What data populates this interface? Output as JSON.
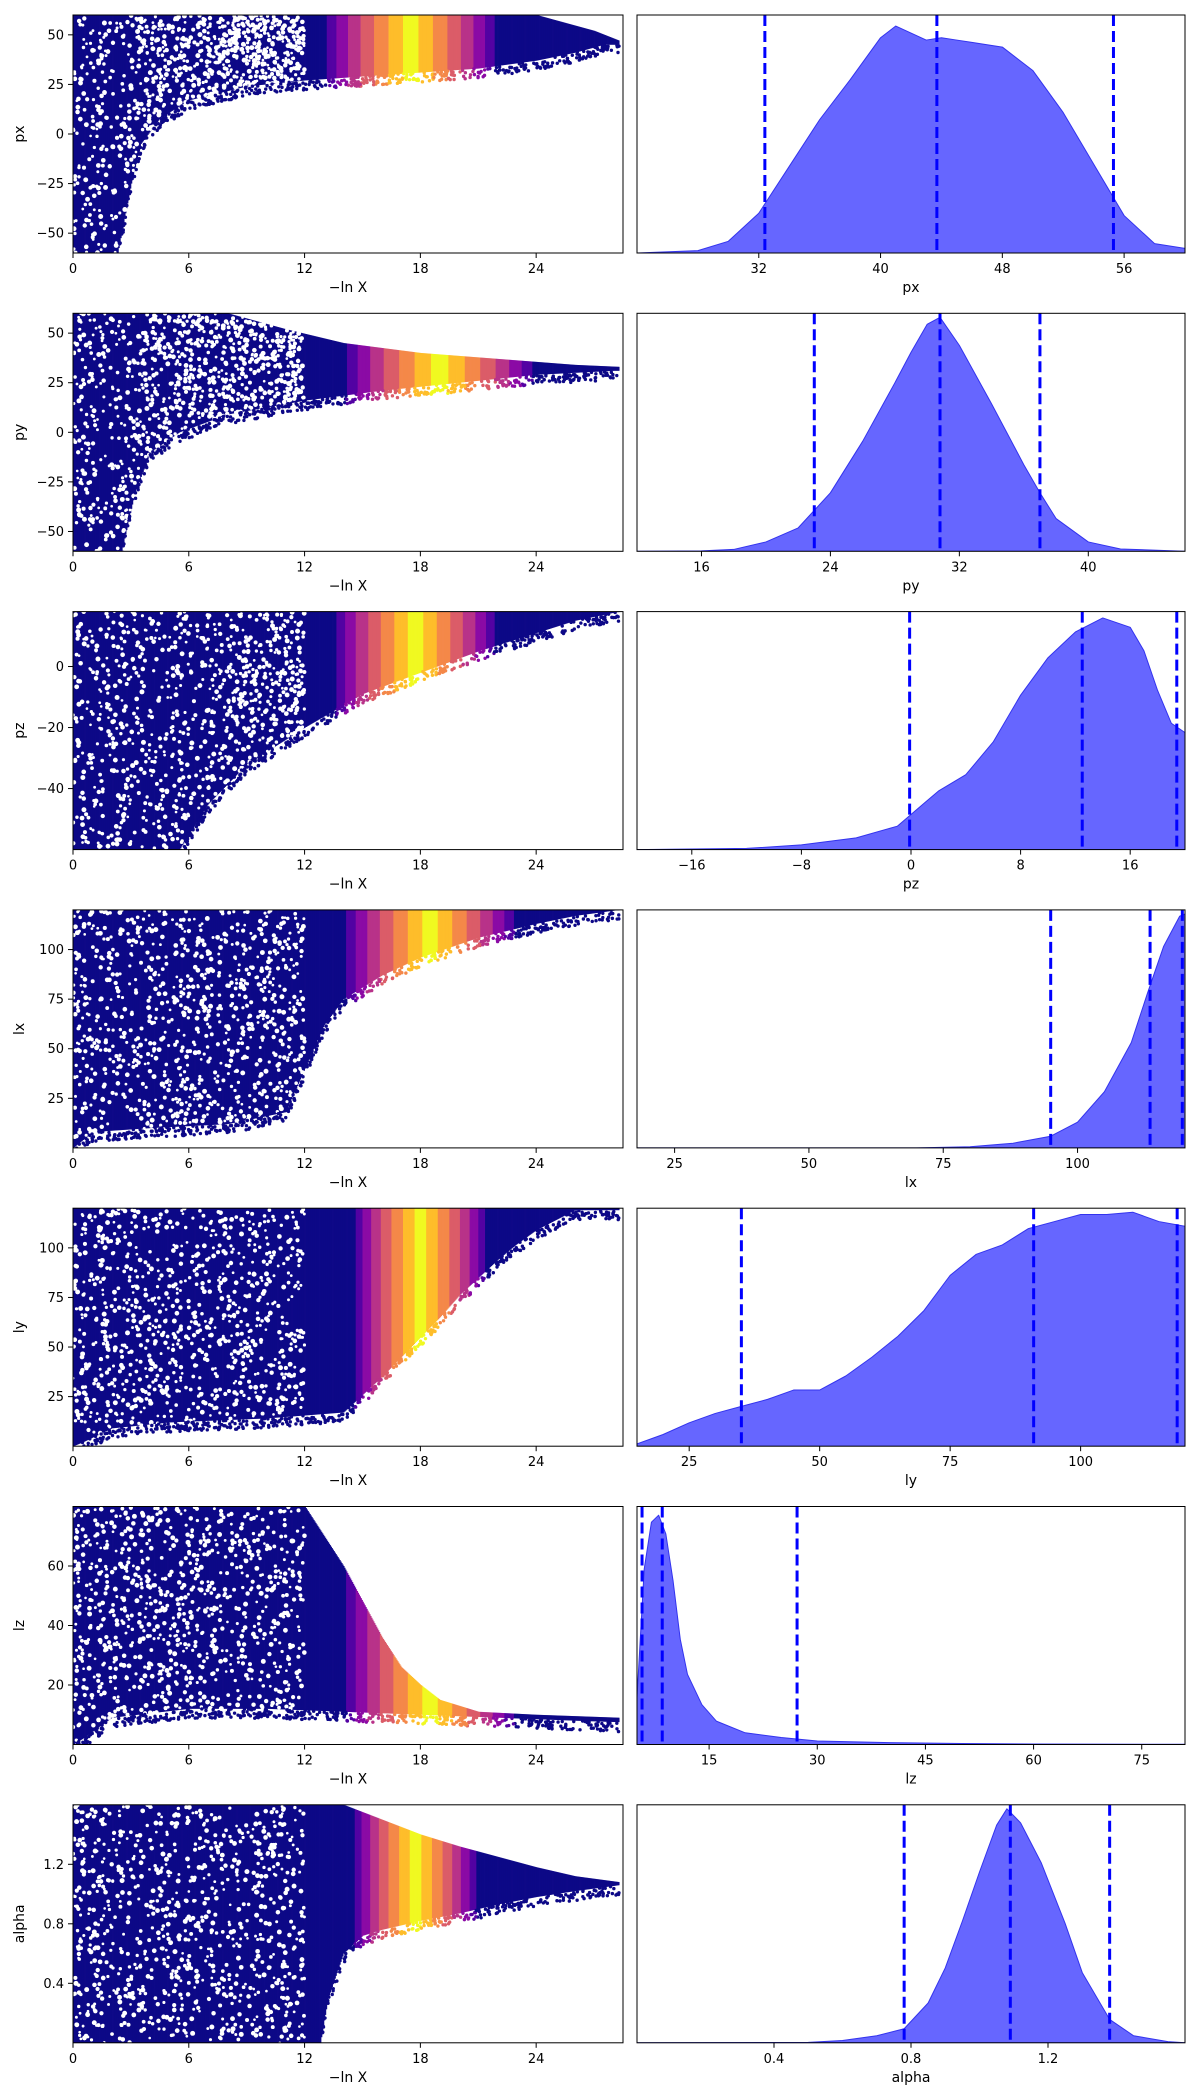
{
  "figure": {
    "description_colors": {
      "kde_fill": "#6666ff",
      "kde_edge": "#3333ee",
      "quantile_line": "#0000ff",
      "scatter_low": "#0d0887",
      "scatter_colormap": [
        "#0d0887",
        "#5302a3",
        "#8b0aa5",
        "#b83289",
        "#db5c68",
        "#f48849",
        "#febd2a",
        "#f0f921"
      ]
    }
  },
  "chart_data": [
    {
      "type": "scatter",
      "param": "px",
      "xlabel": "−ln X",
      "ylabel": "px",
      "xlim": [
        0,
        28.5
      ],
      "ylim": [
        -60,
        60
      ],
      "xticks": [
        0,
        6,
        12,
        18,
        24
      ],
      "yticks": [
        -50,
        -25,
        0,
        25,
        50
      ],
      "ytick_labels": [
        "−50",
        "−25",
        "0",
        "25",
        "50"
      ],
      "lower_edge": [
        [
          0,
          -60
        ],
        [
          2.3,
          -60
        ],
        [
          3.0,
          -25
        ],
        [
          3.5,
          -5
        ],
        [
          4.5,
          8
        ],
        [
          6,
          17
        ],
        [
          9,
          24
        ],
        [
          12,
          27
        ],
        [
          15,
          29
        ],
        [
          18,
          31
        ],
        [
          21,
          33
        ],
        [
          24,
          37
        ],
        [
          26,
          41
        ],
        [
          27.5,
          45
        ]
      ],
      "upper_edge": [
        [
          0,
          60
        ],
        [
          24,
          60
        ],
        [
          25.5,
          56
        ],
        [
          27,
          52
        ],
        [
          28.3,
          47
        ]
      ],
      "bright_window": [
        13,
        22
      ]
    },
    {
      "type": "area",
      "param": "px",
      "xlabel": "px",
      "xlim": [
        24,
        60
      ],
      "xticks": [
        32,
        40,
        48,
        56
      ],
      "quantiles": [
        32.4,
        43.7,
        55.3
      ],
      "density": [
        [
          24,
          0
        ],
        [
          28,
          0.01
        ],
        [
          30,
          0.05
        ],
        [
          32,
          0.17
        ],
        [
          34,
          0.37
        ],
        [
          36,
          0.57
        ],
        [
          38,
          0.74
        ],
        [
          40,
          0.92
        ],
        [
          41,
          0.97
        ],
        [
          42,
          0.94
        ],
        [
          43,
          0.91
        ],
        [
          44,
          0.92
        ],
        [
          45,
          0.91
        ],
        [
          46,
          0.9
        ],
        [
          48,
          0.88
        ],
        [
          50,
          0.78
        ],
        [
          52,
          0.6
        ],
        [
          54,
          0.38
        ],
        [
          56,
          0.16
        ],
        [
          58,
          0.04
        ],
        [
          60,
          0.02
        ]
      ]
    },
    {
      "type": "scatter",
      "param": "py",
      "xlabel": "−ln X",
      "ylabel": "py",
      "xlim": [
        0,
        28.5
      ],
      "ylim": [
        -60,
        60
      ],
      "xticks": [
        0,
        6,
        12,
        18,
        24
      ],
      "yticks": [
        -50,
        -25,
        0,
        25,
        50
      ],
      "ytick_labels": [
        "−50",
        "−25",
        "0",
        "25",
        "50"
      ],
      "lower_edge": [
        [
          0,
          -60
        ],
        [
          2.5,
          -60
        ],
        [
          3.2,
          -30
        ],
        [
          4,
          -10
        ],
        [
          5.5,
          0
        ],
        [
          8,
          9
        ],
        [
          12,
          16
        ],
        [
          16,
          21
        ],
        [
          20,
          25
        ],
        [
          24,
          29
        ],
        [
          28,
          31
        ]
      ],
      "upper_edge": [
        [
          0,
          60
        ],
        [
          8,
          60
        ],
        [
          11,
          52
        ],
        [
          14,
          45
        ],
        [
          18,
          40
        ],
        [
          22,
          37
        ],
        [
          26,
          34
        ],
        [
          28.3,
          33
        ]
      ],
      "bright_window": [
        14,
        24
      ]
    },
    {
      "type": "area",
      "param": "py",
      "xlabel": "py",
      "xlim": [
        12,
        46
      ],
      "xticks": [
        16,
        24,
        32,
        40
      ],
      "quantiles": [
        23.0,
        30.8,
        37.0
      ],
      "density": [
        [
          12,
          0
        ],
        [
          16,
          0.002
        ],
        [
          18,
          0.008
        ],
        [
          20,
          0.04
        ],
        [
          22,
          0.1
        ],
        [
          24,
          0.25
        ],
        [
          26,
          0.47
        ],
        [
          28,
          0.72
        ],
        [
          29,
          0.85
        ],
        [
          30,
          0.97
        ],
        [
          30.8,
          1.0
        ],
        [
          32,
          0.88
        ],
        [
          34,
          0.63
        ],
        [
          36,
          0.37
        ],
        [
          37,
          0.25
        ],
        [
          38,
          0.14
        ],
        [
          40,
          0.04
        ],
        [
          42,
          0.01
        ],
        [
          46,
          0
        ]
      ]
    },
    {
      "type": "scatter",
      "param": "pz",
      "xlabel": "−ln X",
      "ylabel": "pz",
      "xlim": [
        0,
        28.5
      ],
      "ylim": [
        -60,
        18
      ],
      "xticks": [
        0,
        6,
        12,
        18,
        24
      ],
      "yticks": [
        -40,
        -20,
        0
      ],
      "ytick_labels": [
        "−40",
        "−20",
        "0"
      ],
      "lower_edge": [
        [
          0,
          -60
        ],
        [
          5.5,
          -60
        ],
        [
          7,
          -45
        ],
        [
          9,
          -32
        ],
        [
          12,
          -20
        ],
        [
          15,
          -9
        ],
        [
          18,
          -2
        ],
        [
          21,
          5
        ],
        [
          24,
          11
        ],
        [
          26,
          15
        ],
        [
          28.3,
          18
        ]
      ],
      "upper_edge": [
        [
          0,
          18
        ],
        [
          28.3,
          18
        ]
      ],
      "bright_window": [
        13.5,
        22
      ]
    },
    {
      "type": "area",
      "param": "pz",
      "xlabel": "pz",
      "xlim": [
        -20,
        20
      ],
      "xticks": [
        -16,
        -8,
        0,
        8,
        16
      ],
      "xtick_labels": [
        "−16",
        "−8",
        "0",
        "8",
        "16"
      ],
      "quantiles": [
        -0.1,
        12.5,
        19.4
      ],
      "density": [
        [
          -20,
          0
        ],
        [
          -12,
          0.005
        ],
        [
          -8,
          0.02
        ],
        [
          -4,
          0.05
        ],
        [
          -1,
          0.1
        ],
        [
          1,
          0.2
        ],
        [
          2,
          0.25
        ],
        [
          4,
          0.32
        ],
        [
          6,
          0.46
        ],
        [
          8,
          0.66
        ],
        [
          10,
          0.82
        ],
        [
          12,
          0.93
        ],
        [
          14,
          0.99
        ],
        [
          16,
          0.95
        ],
        [
          17,
          0.85
        ],
        [
          18,
          0.68
        ],
        [
          19,
          0.54
        ],
        [
          20,
          0.5
        ]
      ]
    },
    {
      "type": "scatter",
      "param": "lx",
      "xlabel": "−ln X",
      "ylabel": "lx",
      "xlim": [
        0,
        28.5
      ],
      "ylim": [
        0,
        120
      ],
      "xticks": [
        0,
        6,
        12,
        18,
        24
      ],
      "yticks": [
        25,
        50,
        75,
        100
      ],
      "ytick_labels": [
        "25",
        "50",
        "75",
        "100"
      ],
      "lower_edge": [
        [
          0,
          0
        ],
        [
          1,
          8
        ],
        [
          4,
          10
        ],
        [
          8,
          12
        ],
        [
          11,
          18
        ],
        [
          12,
          40
        ],
        [
          13,
          62
        ],
        [
          14,
          75
        ],
        [
          16,
          87
        ],
        [
          18,
          96
        ],
        [
          21,
          106
        ],
        [
          24,
          113
        ],
        [
          26,
          117
        ],
        [
          28.3,
          120
        ]
      ],
      "upper_edge": [
        [
          0,
          120
        ],
        [
          28.3,
          120
        ]
      ],
      "bright_window": [
        14,
        23
      ]
    },
    {
      "type": "area",
      "param": "lx",
      "xlabel": "lx",
      "xlim": [
        18,
        120
      ],
      "xticks": [
        25,
        50,
        75,
        100
      ],
      "quantiles": [
        95,
        113.5,
        119.5
      ],
      "density": [
        [
          18,
          0
        ],
        [
          70,
          0
        ],
        [
          80,
          0.005
        ],
        [
          88,
          0.02
        ],
        [
          95,
          0.05
        ],
        [
          100,
          0.11
        ],
        [
          105,
          0.24
        ],
        [
          110,
          0.45
        ],
        [
          113,
          0.66
        ],
        [
          116,
          0.86
        ],
        [
          119,
          0.99
        ],
        [
          120,
          1.0
        ]
      ]
    },
    {
      "type": "scatter",
      "param": "ly",
      "xlabel": "−ln X",
      "ylabel": "ly",
      "xlim": [
        0,
        28.5
      ],
      "ylim": [
        0,
        120
      ],
      "xticks": [
        0,
        6,
        12,
        18,
        24
      ],
      "yticks": [
        25,
        50,
        75,
        100
      ],
      "ytick_labels": [
        "25",
        "50",
        "75",
        "100"
      ],
      "lower_edge": [
        [
          0,
          0
        ],
        [
          0.5,
          2
        ],
        [
          2,
          9
        ],
        [
          5,
          12
        ],
        [
          10,
          14
        ],
        [
          14,
          17
        ],
        [
          15,
          26
        ],
        [
          16,
          35
        ],
        [
          17,
          45
        ],
        [
          18,
          55
        ],
        [
          19,
          65
        ],
        [
          20,
          76
        ],
        [
          21,
          85
        ],
        [
          22,
          94
        ],
        [
          23,
          102
        ],
        [
          24,
          109
        ],
        [
          25,
          114
        ],
        [
          26,
          119
        ]
      ],
      "upper_edge": [
        [
          0,
          120
        ],
        [
          28.3,
          120
        ]
      ],
      "bright_window": [
        14.5,
        21.5
      ]
    },
    {
      "type": "area",
      "param": "ly",
      "xlabel": "ly",
      "xlim": [
        15,
        120
      ],
      "xticks": [
        25,
        50,
        75,
        100
      ],
      "quantiles": [
        35,
        91,
        118.5
      ],
      "density": [
        [
          15,
          0.01
        ],
        [
          20,
          0.05
        ],
        [
          25,
          0.1
        ],
        [
          30,
          0.14
        ],
        [
          35,
          0.17
        ],
        [
          40,
          0.2
        ],
        [
          45,
          0.24
        ],
        [
          50,
          0.24
        ],
        [
          55,
          0.3
        ],
        [
          60,
          0.38
        ],
        [
          65,
          0.47
        ],
        [
          70,
          0.58
        ],
        [
          75,
          0.73
        ],
        [
          80,
          0.82
        ],
        [
          85,
          0.86
        ],
        [
          90,
          0.93
        ],
        [
          95,
          0.96
        ],
        [
          100,
          0.99
        ],
        [
          105,
          0.99
        ],
        [
          110,
          1.0
        ],
        [
          115,
          0.96
        ],
        [
          120,
          0.94
        ]
      ]
    },
    {
      "type": "scatter",
      "param": "lz",
      "xlabel": "−ln X",
      "ylabel": "lz",
      "xlim": [
        0,
        28.5
      ],
      "ylim": [
        0,
        80
      ],
      "xticks": [
        0,
        6,
        12,
        18,
        24
      ],
      "yticks": [
        20,
        40,
        60
      ],
      "ytick_labels": [
        "20",
        "40",
        "60"
      ],
      "lower_edge": [
        [
          0,
          0
        ],
        [
          0.5,
          2
        ],
        [
          2,
          9
        ],
        [
          6,
          12
        ],
        [
          10,
          12
        ],
        [
          14,
          11
        ],
        [
          18,
          10
        ],
        [
          22,
          9
        ],
        [
          26,
          8
        ],
        [
          28.3,
          7.5
        ]
      ],
      "upper_edge": [
        [
          0,
          80
        ],
        [
          12,
          80
        ],
        [
          14,
          60
        ],
        [
          15,
          48
        ],
        [
          16,
          36
        ],
        [
          17,
          26
        ],
        [
          18,
          20
        ],
        [
          19,
          15
        ],
        [
          21,
          11
        ],
        [
          24,
          10
        ],
        [
          28.3,
          9
        ]
      ],
      "bright_window": [
        14,
        23
      ]
    },
    {
      "type": "area",
      "param": "lz",
      "xlabel": "lz",
      "xlim": [
        5,
        81
      ],
      "xticks": [
        15,
        30,
        45,
        60,
        75
      ],
      "quantiles": [
        5.7,
        8.5,
        27.2
      ],
      "density": [
        [
          5,
          0.2
        ],
        [
          6,
          0.75
        ],
        [
          7,
          0.95
        ],
        [
          8,
          0.98
        ],
        [
          9,
          0.9
        ],
        [
          10,
          0.7
        ],
        [
          11,
          0.45
        ],
        [
          12,
          0.3
        ],
        [
          14,
          0.17
        ],
        [
          16,
          0.1
        ],
        [
          20,
          0.05
        ],
        [
          25,
          0.03
        ],
        [
          30,
          0.015
        ],
        [
          40,
          0.008
        ],
        [
          50,
          0.004
        ],
        [
          60,
          0.002
        ],
        [
          81,
          0.001
        ]
      ]
    },
    {
      "type": "scatter",
      "param": "alpha",
      "xlabel": "−ln X",
      "ylabel": "alpha",
      "xlim": [
        0,
        28.5
      ],
      "ylim": [
        0,
        1.6
      ],
      "xticks": [
        0,
        6,
        12,
        18,
        24
      ],
      "yticks": [
        0.4,
        0.8,
        1.2
      ],
      "ytick_labels": [
        "0.4",
        "0.8",
        "1.2"
      ],
      "lower_edge": [
        [
          0,
          0
        ],
        [
          12.8,
          0
        ],
        [
          13.2,
          0.3
        ],
        [
          14,
          0.6
        ],
        [
          15,
          0.72
        ],
        [
          16,
          0.76
        ],
        [
          18,
          0.82
        ],
        [
          20,
          0.87
        ],
        [
          22,
          0.93
        ],
        [
          24,
          0.98
        ],
        [
          26,
          1.02
        ],
        [
          28.3,
          1.06
        ]
      ],
      "upper_edge": [
        [
          0,
          1.6
        ],
        [
          14,
          1.6
        ],
        [
          16,
          1.5
        ],
        [
          18,
          1.4
        ],
        [
          20,
          1.32
        ],
        [
          22,
          1.25
        ],
        [
          24,
          1.18
        ],
        [
          26,
          1.12
        ],
        [
          28.3,
          1.08
        ]
      ],
      "bright_window": [
        14.5,
        21
      ]
    },
    {
      "type": "area",
      "param": "alpha",
      "xlabel": "alpha",
      "xlim": [
        0,
        1.6
      ],
      "xticks": [
        0.4,
        0.8,
        1.2
      ],
      "quantiles": [
        0.78,
        1.09,
        1.38
      ],
      "density": [
        [
          0,
          0
        ],
        [
          0.5,
          0.002
        ],
        [
          0.6,
          0.01
        ],
        [
          0.7,
          0.03
        ],
        [
          0.78,
          0.06
        ],
        [
          0.85,
          0.17
        ],
        [
          0.9,
          0.32
        ],
        [
          0.95,
          0.52
        ],
        [
          1.0,
          0.73
        ],
        [
          1.05,
          0.93
        ],
        [
          1.08,
          1.0
        ],
        [
          1.12,
          0.94
        ],
        [
          1.18,
          0.77
        ],
        [
          1.25,
          0.51
        ],
        [
          1.3,
          0.3
        ],
        [
          1.38,
          0.1
        ],
        [
          1.45,
          0.03
        ],
        [
          1.55,
          0.005
        ],
        [
          1.6,
          0
        ]
      ]
    }
  ]
}
